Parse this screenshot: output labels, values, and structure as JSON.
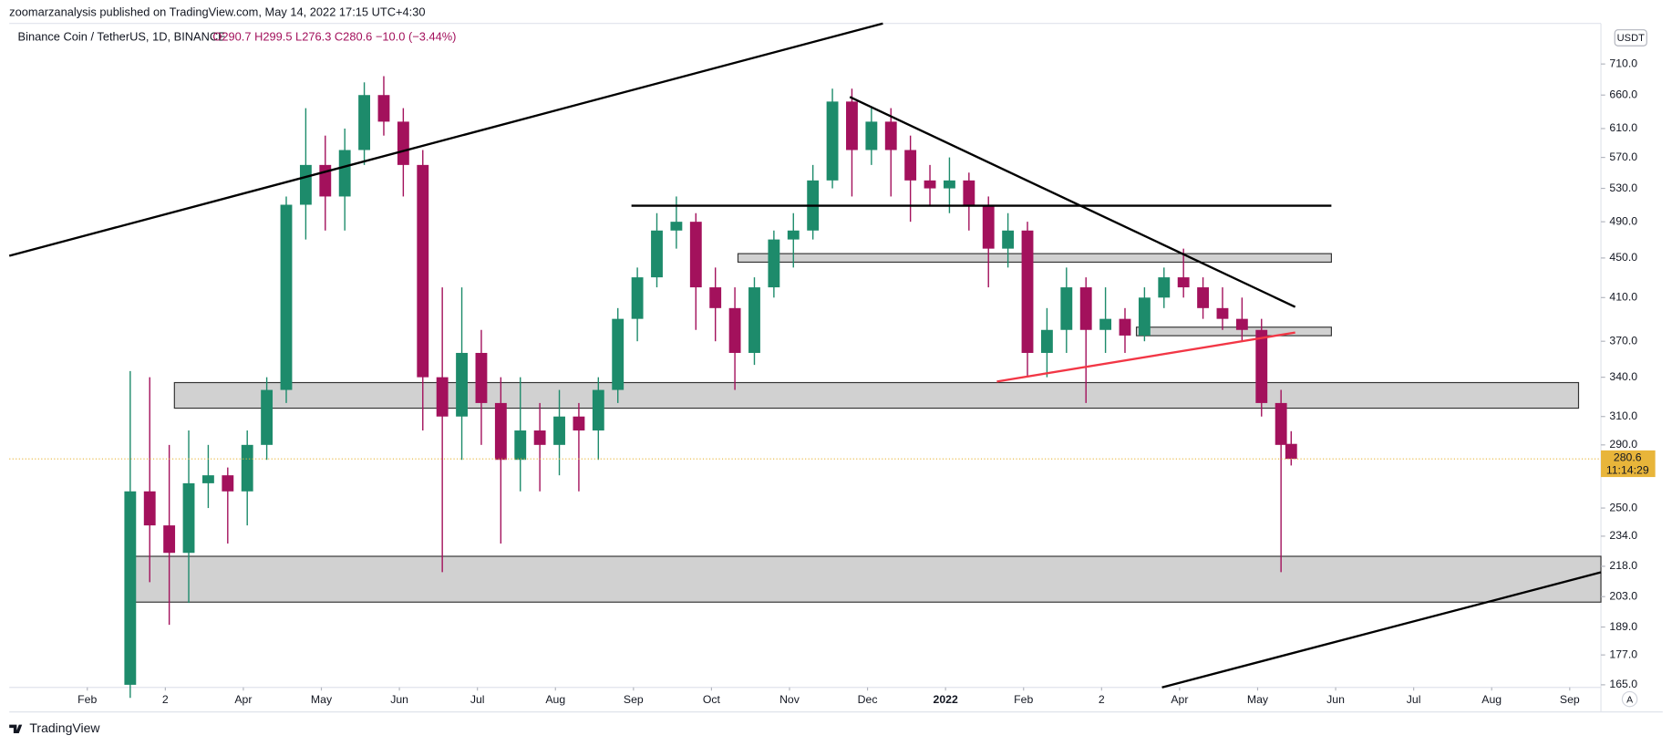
{
  "header": {
    "publisher": "zoomarzanalysis published on TradingView.com, May 14, 2022 17:15 UTC+4:30",
    "symbol": "Binance Coin / TetherUS, 1D, BINANCE",
    "ohlc_text": "O290.7 H299.5 L276.3 C280.6 −10.0 (−3.44%)",
    "currency": "USDT",
    "countdown": "11:14:29",
    "auto_button": "A",
    "footer": "TradingView"
  },
  "chart_data": {
    "type": "candlestick",
    "log_scale": true,
    "grid": false,
    "up_color": "#1d8b6b",
    "down_color": "#a3115c",
    "x": [
      1.55,
      1.8,
      2.05,
      2.3,
      2.55,
      2.8,
      3.05,
      3.3,
      3.55,
      3.8,
      4.05,
      4.3,
      4.55,
      4.8,
      5.05,
      5.3,
      5.55,
      5.8,
      6.05,
      6.3,
      6.55,
      6.8,
      7.05,
      7.3,
      7.55,
      7.8,
      8.05,
      8.3,
      8.55,
      8.8,
      9.05,
      9.3,
      9.55,
      9.8,
      10.05,
      10.3,
      10.55,
      10.8,
      11.05,
      11.3,
      11.55,
      11.8,
      12.05,
      12.3,
      12.55,
      12.8,
      13.05,
      13.3,
      13.55,
      13.8,
      14.05,
      14.3,
      14.55,
      14.8,
      15.05,
      15.3,
      15.55,
      15.8,
      16.05,
      16.3,
      16.43
    ],
    "open": [
      165,
      260,
      240,
      225,
      265,
      270,
      260,
      290,
      330,
      510,
      560,
      520,
      580,
      660,
      620,
      560,
      340,
      310,
      360,
      320,
      280,
      300,
      290,
      310,
      300,
      330,
      390,
      430,
      480,
      490,
      420,
      400,
      360,
      420,
      470,
      480,
      540,
      650,
      580,
      620,
      580,
      540,
      530,
      540,
      510,
      460,
      480,
      360,
      380,
      420,
      380,
      390,
      375,
      410,
      430,
      420,
      400,
      390,
      380,
      320,
      290.7
    ],
    "high": [
      345,
      340,
      290,
      300,
      290,
      275,
      300,
      340,
      520,
      640,
      600,
      610,
      680,
      690,
      640,
      580,
      420,
      420,
      380,
      340,
      340,
      320,
      330,
      320,
      340,
      400,
      440,
      500,
      520,
      500,
      440,
      420,
      430,
      480,
      500,
      560,
      670,
      670,
      640,
      640,
      600,
      560,
      570,
      550,
      520,
      500,
      490,
      400,
      440,
      430,
      420,
      400,
      420,
      440,
      460,
      430,
      420,
      410,
      390,
      330,
      299.5
    ],
    "low": [
      160,
      210,
      190,
      200,
      250,
      230,
      240,
      280,
      320,
      470,
      480,
      480,
      560,
      600,
      520,
      300,
      215,
      280,
      290,
      230,
      260,
      260,
      270,
      260,
      280,
      320,
      370,
      420,
      460,
      380,
      370,
      330,
      350,
      410,
      440,
      470,
      530,
      520,
      560,
      520,
      490,
      510,
      500,
      480,
      420,
      440,
      340,
      340,
      360,
      320,
      360,
      360,
      370,
      400,
      410,
      390,
      380,
      370,
      310,
      215,
      276.3
    ],
    "close": [
      260,
      240,
      225,
      265,
      270,
      260,
      290,
      330,
      510,
      560,
      520,
      580,
      660,
      620,
      560,
      340,
      310,
      360,
      320,
      280,
      300,
      290,
      310,
      300,
      330,
      390,
      430,
      480,
      490,
      420,
      400,
      360,
      420,
      470,
      480,
      540,
      650,
      580,
      620,
      580,
      540,
      530,
      540,
      510,
      460,
      480,
      360,
      380,
      420,
      380,
      390,
      375,
      410,
      430,
      420,
      400,
      390,
      380,
      320,
      290,
      280.6
    ],
    "xlim": [
      0,
      20.4
    ],
    "xticks": [
      {
        "value": 1,
        "label": "Feb"
      },
      {
        "value": 2,
        "label": "2"
      },
      {
        "value": 3,
        "label": "Apr"
      },
      {
        "value": 4,
        "label": "May"
      },
      {
        "value": 5,
        "label": "Jun"
      },
      {
        "value": 6,
        "label": "Jul"
      },
      {
        "value": 7,
        "label": "Aug"
      },
      {
        "value": 8,
        "label": "Sep"
      },
      {
        "value": 9,
        "label": "Oct"
      },
      {
        "value": 10,
        "label": "Nov"
      },
      {
        "value": 11,
        "label": "Dec"
      },
      {
        "value": 12,
        "label": "2022"
      },
      {
        "value": 13,
        "label": "Feb"
      },
      {
        "value": 14,
        "label": "2"
      },
      {
        "value": 15,
        "label": "Apr"
      },
      {
        "value": 16,
        "label": "May"
      },
      {
        "value": 17,
        "label": "Jun"
      },
      {
        "value": 18,
        "label": "Jul"
      },
      {
        "value": 19,
        "label": "Aug"
      },
      {
        "value": 20,
        "label": "Sep"
      }
    ],
    "ylim": [
      164,
      781
    ],
    "yticks": [
      {
        "value": 710,
        "label": "710.0"
      },
      {
        "value": 660,
        "label": "660.0"
      },
      {
        "value": 610,
        "label": "610.0"
      },
      {
        "value": 570,
        "label": "570.0"
      },
      {
        "value": 530,
        "label": "530.0"
      },
      {
        "value": 490,
        "label": "490.0"
      },
      {
        "value": 450,
        "label": "450.0"
      },
      {
        "value": 410,
        "label": "410.0"
      },
      {
        "value": 370,
        "label": "370.0"
      },
      {
        "value": 340,
        "label": "340.0"
      },
      {
        "value": 310,
        "label": "310.0"
      },
      {
        "value": 290,
        "label": "290.0"
      },
      {
        "value": 250,
        "label": "250.0"
      },
      {
        "value": 234,
        "label": "234.0"
      },
      {
        "value": 218,
        "label": "218.0"
      },
      {
        "value": 203,
        "label": "203.0"
      },
      {
        "value": 189,
        "label": "189.0"
      },
      {
        "value": 177,
        "label": "177.0"
      },
      {
        "value": 165,
        "label": "165.0"
      }
    ]
  }
}
